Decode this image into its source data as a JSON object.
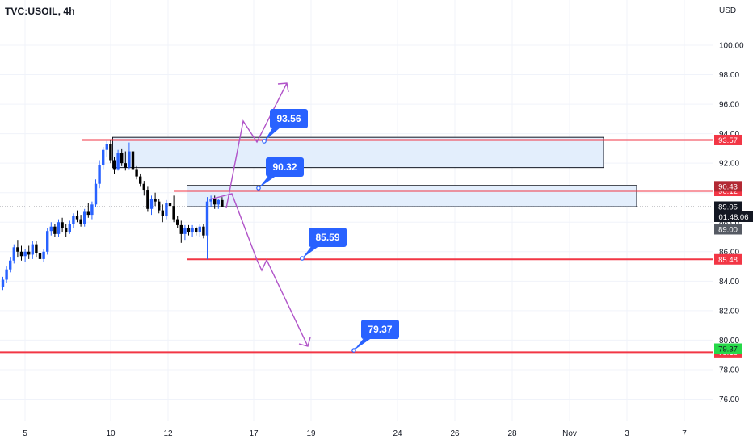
{
  "symbol_title": "TVC:USOIL, 4h",
  "currency": "USD",
  "colors": {
    "up": "#2962ff",
    "down": "#000000",
    "zone_fill": "#e3eefc",
    "red_line": "#f23645",
    "arrow": "#b052c8",
    "callout": "#2962ff",
    "grid": "#f0f3fa",
    "axis_text": "#131722"
  },
  "chart_data": {
    "type": "candlestick",
    "ylim": [
      74.5,
      102.0
    ],
    "y_ticks": [
      "76.00",
      "78.00",
      "80.00",
      "82.00",
      "84.00",
      "86.00",
      "88.00",
      "90.00",
      "92.00",
      "94.00",
      "96.00",
      "98.00",
      "100.00"
    ],
    "x_ticks": [
      "5",
      "10",
      "12",
      "17",
      "19",
      "24",
      "26",
      "28",
      "Nov",
      "3",
      "7"
    ],
    "current_price": "89.05",
    "countdown": "01:48:06",
    "candles": [
      [
        83.6,
        84.3,
        83.4,
        84.1
      ],
      [
        84.1,
        85.0,
        83.9,
        84.8
      ],
      [
        84.8,
        85.6,
        84.6,
        85.4
      ],
      [
        85.4,
        86.5,
        85.2,
        86.3
      ],
      [
        86.3,
        86.8,
        85.6,
        86.0
      ],
      [
        86.0,
        86.4,
        85.4,
        85.7
      ],
      [
        85.7,
        86.2,
        85.3,
        86.0
      ],
      [
        86.0,
        86.4,
        85.5,
        85.8
      ],
      [
        85.8,
        86.7,
        85.5,
        86.5
      ],
      [
        86.5,
        86.7,
        85.6,
        85.9
      ],
      [
        85.9,
        86.3,
        85.2,
        85.5
      ],
      [
        85.5,
        86.2,
        85.3,
        86.0
      ],
      [
        86.0,
        87.6,
        85.8,
        87.4
      ],
      [
        87.4,
        88.0,
        87.1,
        87.7
      ],
      [
        87.7,
        87.9,
        87.0,
        87.2
      ],
      [
        87.2,
        88.2,
        87.0,
        88.0
      ],
      [
        88.0,
        88.3,
        87.3,
        87.6
      ],
      [
        87.6,
        87.9,
        87.0,
        87.3
      ],
      [
        87.3,
        88.1,
        87.2,
        87.9
      ],
      [
        87.9,
        88.6,
        87.6,
        88.4
      ],
      [
        88.4,
        88.8,
        88.0,
        88.2
      ],
      [
        88.2,
        88.5,
        87.7,
        87.9
      ],
      [
        87.9,
        88.9,
        87.7,
        88.7
      ],
      [
        88.7,
        89.3,
        88.3,
        88.5
      ],
      [
        88.5,
        89.4,
        88.2,
        89.2
      ],
      [
        89.2,
        90.9,
        89.0,
        90.6
      ],
      [
        90.6,
        92.2,
        90.3,
        91.9
      ],
      [
        91.9,
        93.1,
        91.6,
        92.9
      ],
      [
        92.9,
        93.5,
        92.4,
        93.3
      ],
      [
        93.3,
        93.6,
        92.0,
        92.2
      ],
      [
        92.2,
        92.4,
        91.3,
        91.6
      ],
      [
        91.6,
        92.9,
        91.5,
        92.7
      ],
      [
        92.7,
        93.0,
        91.8,
        92.0
      ],
      [
        92.0,
        92.8,
        91.5,
        91.7
      ],
      [
        91.7,
        93.4,
        91.6,
        92.8
      ],
      [
        92.8,
        92.9,
        91.5,
        91.6
      ],
      [
        91.6,
        91.8,
        90.9,
        91.1
      ],
      [
        91.1,
        91.3,
        90.4,
        90.6
      ],
      [
        90.6,
        90.8,
        89.8,
        90.2
      ],
      [
        90.2,
        90.4,
        88.7,
        88.9
      ],
      [
        88.9,
        89.8,
        88.5,
        89.6
      ],
      [
        89.6,
        90.0,
        89.1,
        89.4
      ],
      [
        89.4,
        89.6,
        88.6,
        88.8
      ],
      [
        88.8,
        89.2,
        88.0,
        88.4
      ],
      [
        88.4,
        89.5,
        88.2,
        89.3
      ],
      [
        89.3,
        90.0,
        88.8,
        89.1
      ],
      [
        89.1,
        89.8,
        88.0,
        88.2
      ],
      [
        88.2,
        88.4,
        87.6,
        87.8
      ],
      [
        87.8,
        88.1,
        86.6,
        87.2
      ],
      [
        87.2,
        87.8,
        86.8,
        87.6
      ],
      [
        87.6,
        87.8,
        87.1,
        87.3
      ],
      [
        87.3,
        87.8,
        87.0,
        87.6
      ],
      [
        87.6,
        87.7,
        87.1,
        87.3
      ],
      [
        87.3,
        87.9,
        87.0,
        87.7
      ],
      [
        87.7,
        87.9,
        86.9,
        87.1
      ],
      [
        87.1,
        89.7,
        85.48,
        89.4
      ],
      [
        89.4,
        89.8,
        89.0,
        89.6
      ],
      [
        89.6,
        89.8,
        88.9,
        89.2
      ],
      [
        89.2,
        89.6,
        88.9,
        89.5
      ],
      [
        89.5,
        89.7,
        89.0,
        89.05
      ]
    ],
    "zones": [
      {
        "from_index": 30,
        "to": 93.75,
        "from": 91.7
      },
      {
        "from_index": 50,
        "to": 90.49,
        "from": 89.05
      }
    ],
    "horizontal_lines": [
      {
        "value": 93.57,
        "label": "93.57",
        "color": "#f23645",
        "from_index": 25
      },
      {
        "value": 90.12,
        "label": "90.12",
        "color": "#f23645",
        "from_index": 53
      },
      {
        "value": 85.48,
        "label": "85.48",
        "color": "#f23645",
        "from_index": 57
      },
      {
        "value": 79.18,
        "label": "79.18",
        "color": "#f23645",
        "from_index": 0
      }
    ],
    "price_tags": [
      {
        "value": 90.43,
        "label": "90.43",
        "bg": "#b22833"
      },
      {
        "value": 89.05,
        "label": "89.05",
        "bg": "#131722"
      },
      {
        "value": 89.0,
        "label": "89.00",
        "bg": "#555a63"
      },
      {
        "value": 79.37,
        "label": "79.37",
        "bg": "#26d948",
        "fg": "#131722"
      }
    ],
    "callouts": [
      {
        "label": "93.56",
        "value": 93.56
      },
      {
        "label": "90.32",
        "value": 90.32
      },
      {
        "label": "85.59",
        "value": 85.59
      },
      {
        "label": "79.37",
        "value": 79.37
      }
    ]
  }
}
